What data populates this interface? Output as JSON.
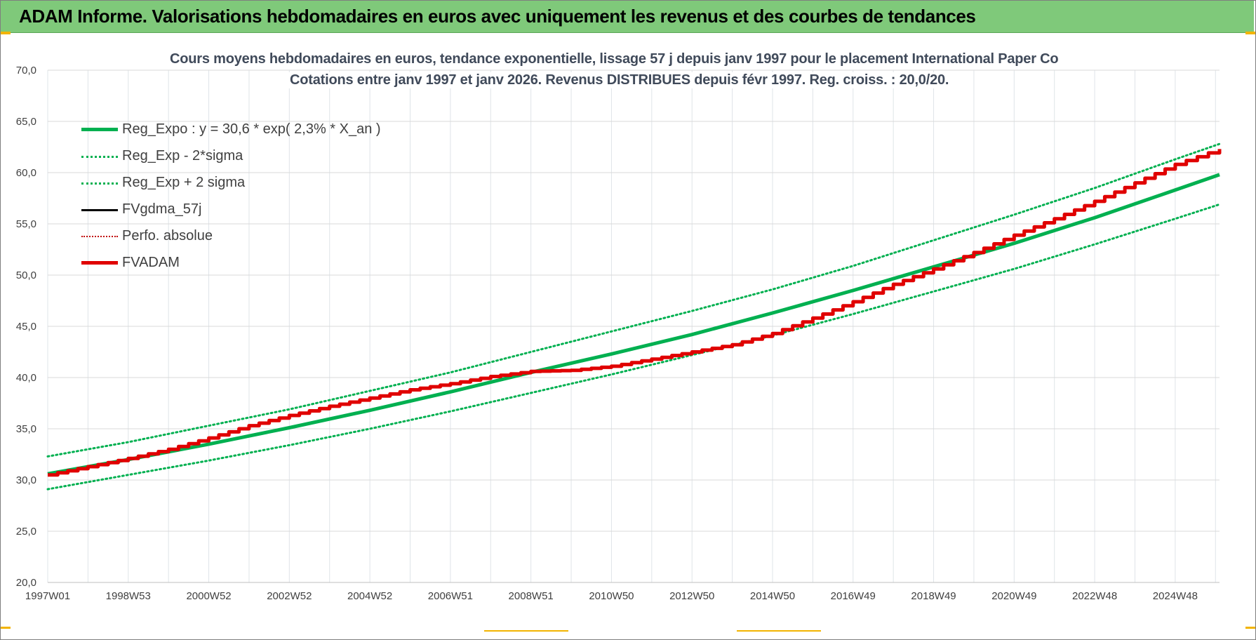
{
  "banner": {
    "title": "ADAM Informe. Valorisations hebdomadaires en euros avec uniquement les revenus et des courbes de tendances",
    "color": "#7fc97a"
  },
  "chart_data": {
    "type": "line",
    "title_line1": "Cours moyens hebdomadaires en euros, tendance exponentielle, lissage 57 j depuis janv 1997 pour le placement International Paper Co",
    "title_line2": "Cotations entre janv 1997 et janv 2026. Revenus DISTRIBUES depuis févr 1997. Reg. croiss. : 20,0/20.",
    "xlabel": "",
    "ylabel": "",
    "ylim": [
      20,
      70
    ],
    "yticks": [
      "20,0",
      "25,0",
      "30,0",
      "35,0",
      "40,0",
      "45,0",
      "50,0",
      "55,0",
      "60,0",
      "65,0",
      "70,0"
    ],
    "xlim": [
      1997.0,
      2026.1
    ],
    "xticks": [
      {
        "label": "1997W01",
        "x": 1997.0
      },
      {
        "label": "1998W53",
        "x": 1999.0
      },
      {
        "label": "2000W52",
        "x": 2001.0
      },
      {
        "label": "2002W52",
        "x": 2003.0
      },
      {
        "label": "2004W52",
        "x": 2005.0
      },
      {
        "label": "2006W51",
        "x": 2007.0
      },
      {
        "label": "2008W51",
        "x": 2009.0
      },
      {
        "label": "2010W50",
        "x": 2011.0
      },
      {
        "label": "2012W50",
        "x": 2013.0
      },
      {
        "label": "2014W50",
        "x": 2015.0
      },
      {
        "label": "2016W49",
        "x": 2017.0
      },
      {
        "label": "2018W49",
        "x": 2019.0
      },
      {
        "label": "2020W49",
        "x": 2021.0
      },
      {
        "label": "2022W48",
        "x": 2023.0
      },
      {
        "label": "2024W48",
        "x": 2025.0
      }
    ],
    "grid": true,
    "legend_position": "top-left",
    "series": [
      {
        "name": "Reg_Expo : y = 30,6 * exp( 2,3% *  X_an )",
        "color": "#00b050",
        "style": "solid-thick",
        "x": [
          1997,
          1999,
          2001,
          2003,
          2005,
          2007,
          2009,
          2011,
          2013,
          2015,
          2017,
          2019,
          2021,
          2023,
          2025,
          2026.1
        ],
        "values": [
          30.6,
          32.0,
          33.5,
          35.1,
          36.8,
          38.6,
          40.5,
          42.3,
          44.2,
          46.3,
          48.5,
          50.8,
          53.1,
          55.6,
          58.3,
          59.8
        ]
      },
      {
        "name": "Reg_Exp - 2*sigma",
        "color": "#00b050",
        "style": "dotted",
        "x": [
          1997,
          1999,
          2001,
          2003,
          2005,
          2007,
          2009,
          2011,
          2013,
          2015,
          2017,
          2019,
          2021,
          2023,
          2025,
          2026.1
        ],
        "values": [
          29.1,
          30.5,
          31.9,
          33.4,
          35.0,
          36.7,
          38.5,
          40.3,
          42.2,
          44.1,
          46.2,
          48.4,
          50.6,
          53.0,
          55.5,
          56.9
        ]
      },
      {
        "name": "Reg_Exp + 2 sigma",
        "color": "#00b050",
        "style": "dotted",
        "x": [
          1997,
          1999,
          2001,
          2003,
          2005,
          2007,
          2009,
          2011,
          2013,
          2015,
          2017,
          2019,
          2021,
          2023,
          2025,
          2026.1
        ],
        "values": [
          32.3,
          33.7,
          35.3,
          36.9,
          38.7,
          40.5,
          42.5,
          44.5,
          46.5,
          48.6,
          50.9,
          53.4,
          55.9,
          58.5,
          61.3,
          62.8
        ]
      },
      {
        "name": "FVgdma_57j",
        "color": "#000000",
        "style": "solid",
        "x": [],
        "values": []
      },
      {
        "name": "Perfo. absolue",
        "color": "#c00000",
        "style": "dotted",
        "x": [],
        "values": []
      },
      {
        "name": "FVADAM",
        "color": "#e00000",
        "style": "solid-thick",
        "x": [
          1997,
          1998,
          1999,
          2000,
          2001,
          2002,
          2003,
          2004,
          2005,
          2006,
          2007,
          2008,
          2009,
          2010,
          2011,
          2012,
          2013,
          2014,
          2015,
          2016,
          2017,
          2018,
          2019,
          2020,
          2021,
          2022,
          2023,
          2024,
          2025,
          2026.1
        ],
        "values": [
          30.5,
          31.3,
          32.1,
          33.0,
          34.1,
          35.3,
          36.3,
          37.2,
          38.0,
          38.8,
          39.4,
          40.1,
          40.6,
          40.7,
          41.1,
          41.8,
          42.5,
          43.2,
          44.3,
          45.8,
          47.4,
          49.1,
          50.6,
          52.2,
          53.9,
          55.5,
          57.2,
          59.0,
          60.8,
          62.3
        ]
      }
    ]
  }
}
